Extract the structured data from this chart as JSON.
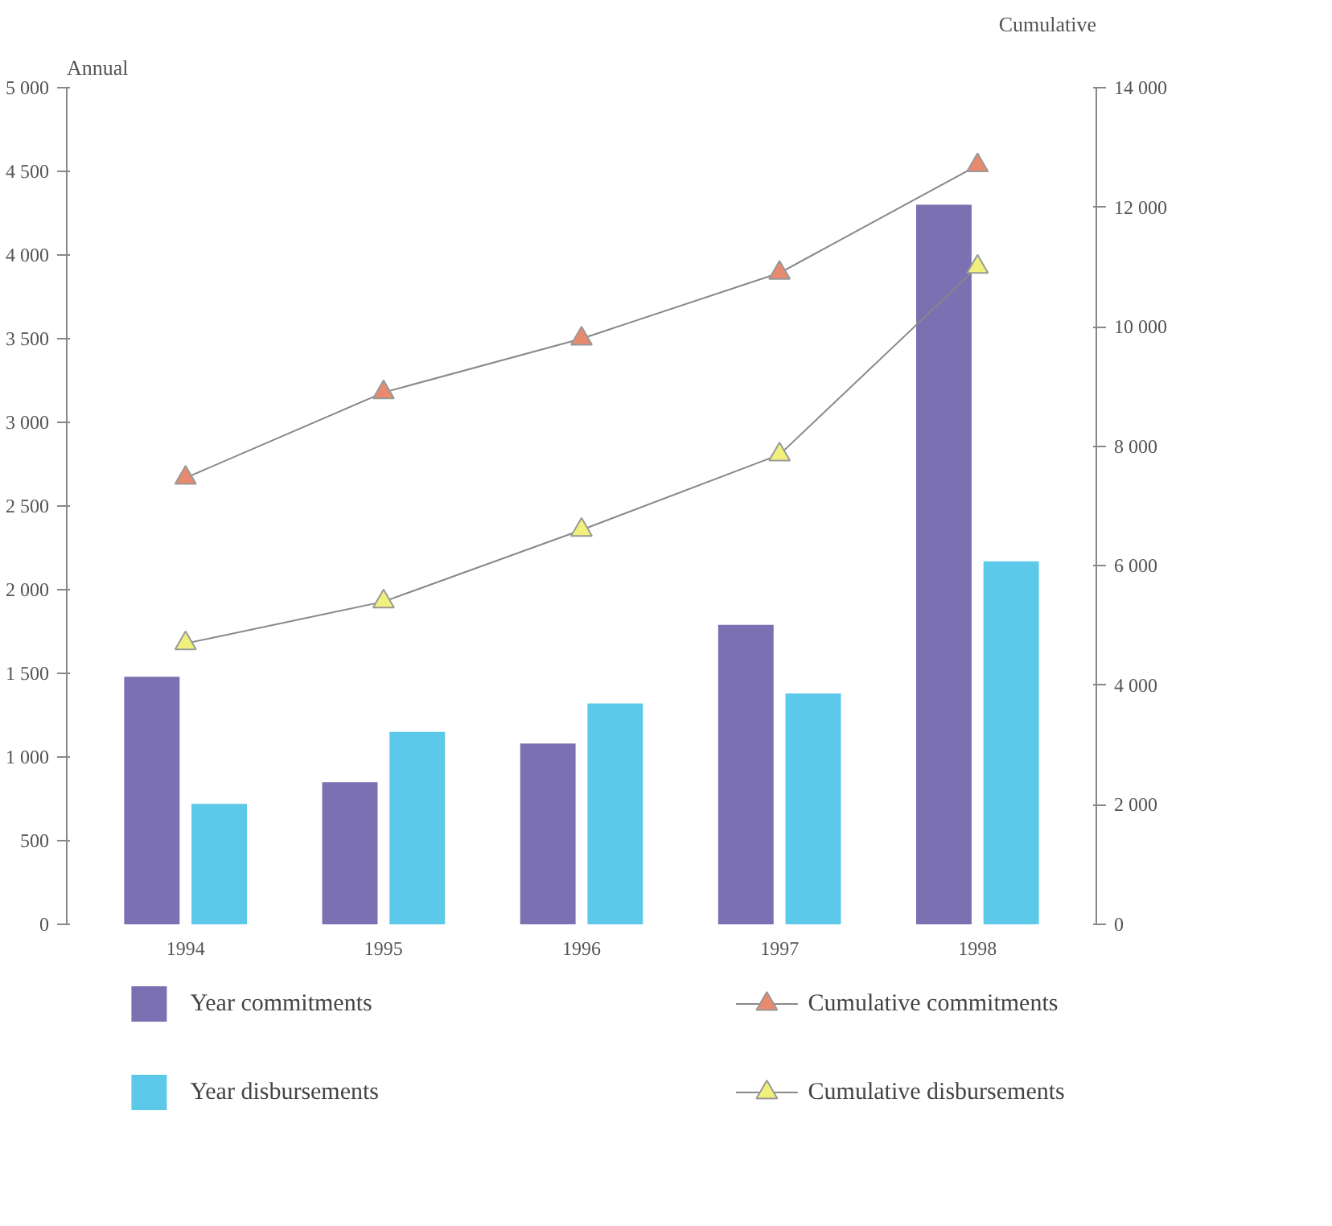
{
  "chart_data": {
    "type": "bar",
    "ylabel": "Annual",
    "y2label": "Cumulative",
    "categories": [
      "1994",
      "1995",
      "1996",
      "1997",
      "1998"
    ],
    "series": [
      {
        "name": "Year commitments",
        "color": "#7b70b2",
        "values": [
          1480,
          850,
          1080,
          1790,
          4300
        ]
      },
      {
        "name": "Year disbursements",
        "color": "#5cc8ea",
        "values": [
          720,
          1150,
          1320,
          1380,
          2170
        ]
      },
      {
        "name": "Cumulative commitments",
        "type": "line",
        "axis": "y2",
        "color": "#e88a6e",
        "values": [
          7470,
          8900,
          9800,
          10900,
          12700
        ]
      },
      {
        "name": "Cumulative disbursements",
        "type": "line",
        "axis": "y2",
        "color": "#f2f07c",
        "values": [
          4700,
          5400,
          6600,
          7860,
          11000
        ]
      }
    ],
    "ylim": [
      0,
      5000
    ],
    "yticks": [
      0,
      500,
      {
        "value": 1000,
        "label": "1 000"
      },
      {
        "value": 1500,
        "label": "1 500"
      },
      {
        "value": 2000,
        "label": "2 000"
      },
      {
        "value": 2500,
        "label": "2 500"
      },
      {
        "value": 3000,
        "label": "3 000"
      },
      {
        "value": 3500,
        "label": "3 500"
      },
      {
        "value": 4000,
        "label": "4 000"
      },
      {
        "value": 4500,
        "label": "4 500"
      },
      {
        "value": 5000,
        "label": "5 000"
      }
    ],
    "y2lim": [
      0,
      14000
    ],
    "y2ticks": [
      0,
      {
        "value": 2000,
        "label": "2 000"
      },
      {
        "value": 4000,
        "label": "4 000"
      },
      {
        "value": 6000,
        "label": "6 000"
      },
      {
        "value": 8000,
        "label": "8 000"
      },
      {
        "value": 10000,
        "label": "10 000"
      },
      {
        "value": 12000,
        "label": "12 000"
      },
      {
        "value": 14000,
        "label": "14 000"
      }
    ],
    "marker": "triangle",
    "grid": false,
    "legend": "bottom"
  }
}
